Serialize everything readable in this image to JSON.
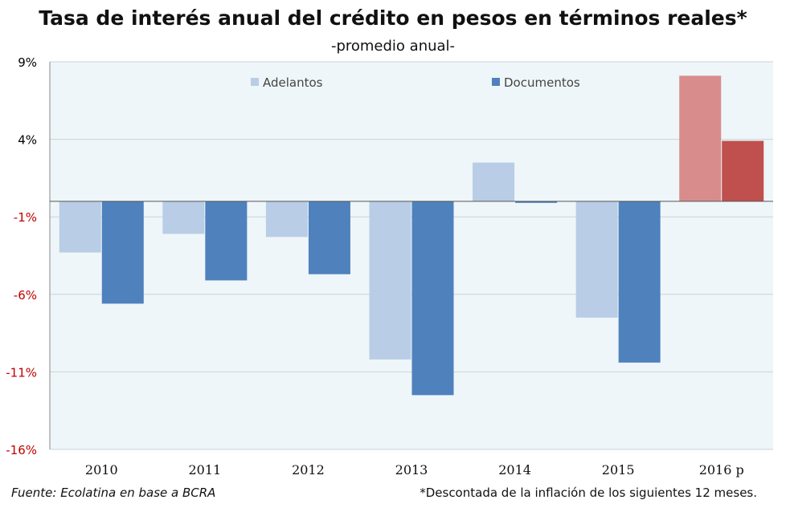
{
  "title": "Tasa de interés anual del crédito en pesos en términos reales*",
  "subtitle": "-promedio anual-",
  "source": "Fuente: Ecolatina en base a BCRA",
  "note": "*Descontada de la inflación de los siguientes 12 meses.",
  "colors": {
    "plot_bg": "#eef6f9",
    "adelantos": "#b9cde6",
    "documentos": "#4f81bd",
    "adelantos_projection": "#d98c8c",
    "documentos_projection": "#c0504d",
    "negative_tick": "#c00000",
    "positive_tick": "#000000"
  },
  "chart_data": {
    "type": "bar",
    "categories": [
      "2010",
      "2011",
      "2012",
      "2013",
      "2014",
      "2015",
      "2016 p"
    ],
    "series": [
      {
        "name": "Adelantos",
        "values": [
          -3.3,
          -2.1,
          -2.3,
          -10.2,
          2.5,
          -7.5,
          8.1
        ]
      },
      {
        "name": "Documentos",
        "values": [
          -6.6,
          -5.1,
          -4.7,
          -12.5,
          -0.1,
          -10.4,
          3.9
        ]
      }
    ],
    "projection_category": "2016 p",
    "ylim": [
      -16,
      9
    ],
    "yticks": [
      9,
      4,
      -1,
      -6,
      -11,
      -16
    ],
    "ytick_labels": [
      "9%",
      "4%",
      "-1%",
      "-6%",
      "-11%",
      "-16%"
    ],
    "legend_position": "top",
    "grid": true
  }
}
